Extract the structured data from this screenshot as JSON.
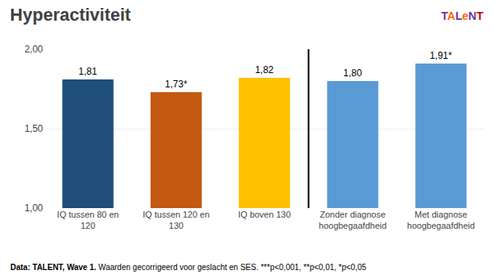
{
  "chart_data": {
    "type": "bar",
    "title": "Hyperactiviteit",
    "categories": [
      "IQ tussen 80 en\n120",
      "IQ tussen 120 en\n130",
      "IQ boven 130",
      "Zonder diagnose\nhoogbegaafdheid",
      "Met diagnose\nhoogbegaafdheid"
    ],
    "values": [
      1.81,
      1.73,
      1.82,
      1.8,
      1.91
    ],
    "value_labels": [
      "1,81",
      "1,73*",
      "1,82",
      "1,80",
      "1,91*"
    ],
    "data_labels": true,
    "colors": [
      "#1F4E79",
      "#C45911",
      "#FFC000",
      "#5B9BD5",
      "#5B9BD5"
    ],
    "ylim": [
      1.0,
      2.0
    ],
    "yticks": [
      {
        "value": 1.0,
        "label": "1,00"
      },
      {
        "value": 1.5,
        "label": "1,50"
      },
      {
        "value": 2.0,
        "label": "2,00"
      }
    ],
    "grid": true,
    "annotations": [
      {
        "text": "Data: TALENT, Wave 1."
      },
      {
        "text": " Waarden gecorrigeerd voor geslacht en SES. ***p<0,001, **p<0,01, *p<0,05"
      },
      {
        "text": "TALeNT",
        "colors": [
          "#7030A0",
          "#FF6600",
          "#7030A0",
          "#FF6600",
          "#7030A0",
          "#CC0000"
        ]
      }
    ]
  }
}
